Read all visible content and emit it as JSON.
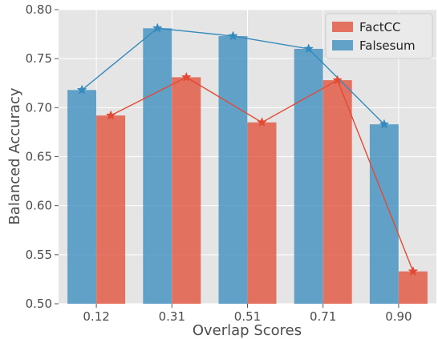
{
  "chart_data": {
    "type": "bar",
    "xlabel": "Overlap Scores",
    "ylabel": "Balanced Accuracy",
    "categories": [
      "0.12",
      "0.31",
      "0.51",
      "0.71",
      "0.90"
    ],
    "ylim": [
      0.5,
      0.8
    ],
    "yticks": [
      "0.50",
      "0.55",
      "0.60",
      "0.65",
      "0.70",
      "0.75",
      "0.80"
    ],
    "grid": true,
    "legend_position": "top-right",
    "series": [
      {
        "name": "FactCC",
        "color": "#e24a33",
        "values": [
          0.692,
          0.731,
          0.685,
          0.728,
          0.533
        ],
        "overlay": "line-with-star-markers"
      },
      {
        "name": "Falsesum",
        "color": "#348abd",
        "values": [
          0.718,
          0.781,
          0.773,
          0.76,
          0.683
        ],
        "overlay": "line-with-star-markers"
      }
    ],
    "legend_order": [
      "FactCC",
      "Falsesum"
    ]
  }
}
